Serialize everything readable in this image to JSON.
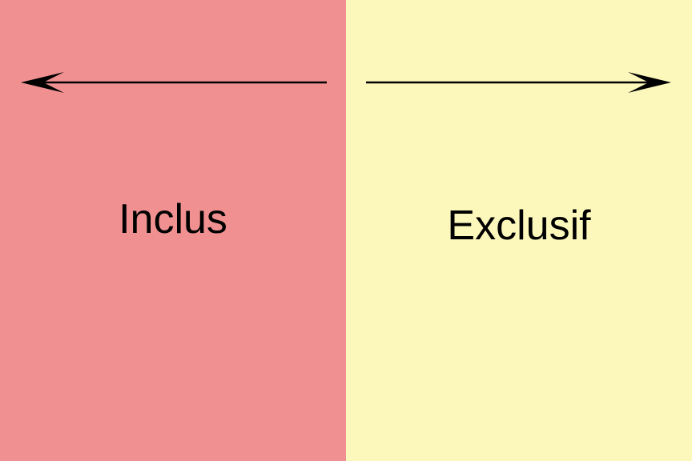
{
  "colors": {
    "left_background": "#f09090",
    "right_background": "#fcf8bc",
    "arrow": "#000000",
    "text": "#000000"
  },
  "left": {
    "label": "Inclus",
    "arrow_direction": "left"
  },
  "right": {
    "label": "Exclusif",
    "arrow_direction": "right"
  }
}
